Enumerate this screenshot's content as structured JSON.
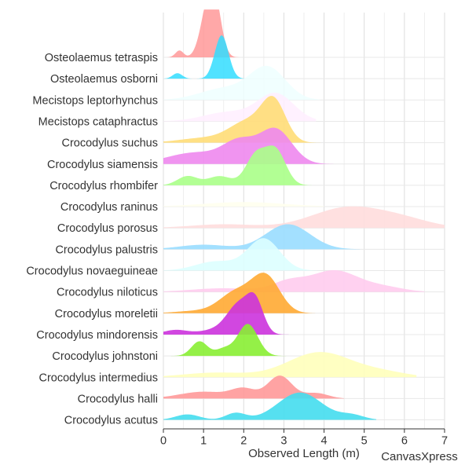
{
  "chart_data": {
    "type": "ridgeline",
    "title": "",
    "xlabel": "Observed Length (m)",
    "ylabel": "",
    "xlim": [
      0,
      7
    ],
    "x_ticks": [
      0,
      1,
      2,
      3,
      4,
      5,
      6,
      7
    ],
    "grid": true,
    "legend": "none",
    "watermark": "CanvasXpress",
    "series": [
      {
        "name": "Osteolaemus tetraspis",
        "color": "#FF9999",
        "alpha": 0.85,
        "peaks": [
          [
            0.4,
            0.1,
            0.15
          ],
          [
            1.1,
            0.18,
            1.0
          ],
          [
            1.3,
            0.16,
            0.9
          ]
        ],
        "range": [
          0,
          1.95
        ]
      },
      {
        "name": "Osteolaemus osborni",
        "color": "#33DDFF",
        "alpha": 0.85,
        "peaks": [
          [
            0.35,
            0.12,
            0.12
          ],
          [
            1.45,
            0.17,
            0.95
          ]
        ],
        "range": [
          0,
          2.2
        ]
      },
      {
        "name": "Mecistops leptorhynchus",
        "color": "#EEFFFF",
        "alpha": 0.85,
        "peaks": [
          [
            1.5,
            0.6,
            0.25
          ],
          [
            2.6,
            0.45,
            0.7
          ]
        ],
        "range": [
          0,
          3.9
        ]
      },
      {
        "name": "Mecistops cataphractus",
        "color": "#FFEEFF",
        "alpha": 0.85,
        "peaks": [
          [
            1.6,
            0.6,
            0.2
          ],
          [
            2.8,
            0.45,
            0.6
          ]
        ],
        "range": [
          0,
          3.8
        ]
      },
      {
        "name": "Crocodylus suchus",
        "color": "#FFDD77",
        "alpha": 0.9,
        "peaks": [
          [
            1.0,
            0.6,
            0.1
          ],
          [
            2.1,
            0.45,
            0.45
          ],
          [
            2.75,
            0.3,
            0.85
          ]
        ],
        "range": [
          0,
          4.0
        ]
      },
      {
        "name": "Crocodylus siamensis",
        "color": "#EE88EE",
        "alpha": 0.9,
        "peaks": [
          [
            0.8,
            0.7,
            0.25
          ],
          [
            1.9,
            0.4,
            0.45
          ],
          [
            2.8,
            0.4,
            0.75
          ]
        ],
        "range": [
          0,
          4.3
        ]
      },
      {
        "name": "Crocodylus rhombifer",
        "color": "#AAFF88",
        "alpha": 0.9,
        "peaks": [
          [
            0.6,
            0.25,
            0.2
          ],
          [
            1.4,
            0.3,
            0.2
          ],
          [
            2.3,
            0.25,
            0.65
          ],
          [
            2.8,
            0.25,
            0.75
          ]
        ],
        "range": [
          0,
          4.0
        ]
      },
      {
        "name": "Crocodylus raninus",
        "color": "#FFFFEE",
        "alpha": 0.9,
        "peaks": [
          [
            2.0,
            1.0,
            0.1
          ]
        ],
        "range": [
          0,
          4.0
        ]
      },
      {
        "name": "Crocodylus porosus",
        "color": "#FFDDDD",
        "alpha": 0.9,
        "peaks": [
          [
            1.5,
            0.8,
            0.08
          ],
          [
            4.6,
            0.9,
            0.45
          ],
          [
            6.0,
            0.7,
            0.15
          ]
        ],
        "range": [
          0,
          7.0
        ]
      },
      {
        "name": "Crocodylus palustris",
        "color": "#99DDFF",
        "alpha": 0.9,
        "peaks": [
          [
            1.0,
            0.6,
            0.1
          ],
          [
            3.1,
            0.55,
            0.55
          ]
        ],
        "range": [
          0,
          4.9
        ]
      },
      {
        "name": "Crocodylus novaeguineae",
        "color": "#DDFFFF",
        "alpha": 0.9,
        "peaks": [
          [
            1.3,
            0.5,
            0.2
          ],
          [
            2.5,
            0.4,
            0.7
          ]
        ],
        "range": [
          0,
          3.9
        ]
      },
      {
        "name": "Crocodylus niloticus",
        "color": "#FFCCEE",
        "alpha": 0.9,
        "peaks": [
          [
            1.5,
            0.8,
            0.08
          ],
          [
            3.1,
            0.4,
            0.2
          ],
          [
            4.25,
            0.6,
            0.47
          ],
          [
            5.5,
            0.5,
            0.1
          ]
        ],
        "range": [
          0,
          6.5
        ]
      },
      {
        "name": "Crocodylus moreletii",
        "color": "#FFAA33",
        "alpha": 0.9,
        "peaks": [
          [
            0.8,
            0.5,
            0.05
          ],
          [
            1.8,
            0.4,
            0.45
          ],
          [
            2.55,
            0.35,
            0.8
          ]
        ],
        "range": [
          0,
          4.15
        ]
      },
      {
        "name": "Crocodylus mindorensis",
        "color": "#CC33DD",
        "alpha": 0.9,
        "peaks": [
          [
            0.3,
            0.3,
            0.1
          ],
          [
            1.3,
            0.4,
            0.1
          ],
          [
            1.9,
            0.3,
            0.65
          ],
          [
            2.3,
            0.2,
            0.6
          ]
        ],
        "range": [
          0,
          3.15
        ]
      },
      {
        "name": "Crocodylus johnstoni",
        "color": "#88EE33",
        "alpha": 0.9,
        "peaks": [
          [
            0.9,
            0.2,
            0.32
          ],
          [
            1.5,
            0.2,
            0.15
          ],
          [
            2.1,
            0.25,
            0.7
          ]
        ],
        "range": [
          0,
          3.6
        ]
      },
      {
        "name": "Crocodylus intermedius",
        "color": "#FFFFBB",
        "alpha": 0.9,
        "peaks": [
          [
            1.3,
            0.8,
            0.1
          ],
          [
            3.9,
            0.8,
            0.55
          ],
          [
            5.5,
            0.6,
            0.1
          ]
        ],
        "range": [
          0,
          6.3
        ]
      },
      {
        "name": "Crocodylus halli",
        "color": "#FF9999",
        "alpha": 0.9,
        "peaks": [
          [
            1.0,
            0.6,
            0.15
          ],
          [
            2.0,
            0.3,
            0.2
          ],
          [
            2.9,
            0.3,
            0.5
          ],
          [
            3.8,
            0.3,
            0.12
          ]
        ],
        "range": [
          0,
          4.5
        ]
      },
      {
        "name": "Crocodylus acutus",
        "color": "#44DDEE",
        "alpha": 0.9,
        "peaks": [
          [
            0.6,
            0.3,
            0.12
          ],
          [
            1.8,
            0.25,
            0.15
          ],
          [
            3.4,
            0.55,
            0.6
          ],
          [
            4.7,
            0.3,
            0.1
          ]
        ],
        "range": [
          0,
          5.3
        ]
      }
    ]
  }
}
